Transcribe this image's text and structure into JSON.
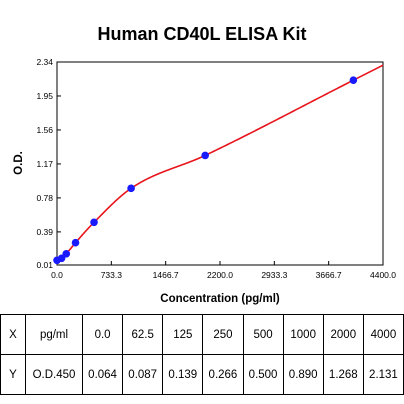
{
  "chart_data": {
    "type": "scatter",
    "title": "Human CD40L ELISA Kit",
    "xlabel": "Concentration (pg/ml)",
    "ylabel": "O.D.",
    "xlim": [
      0,
      4400
    ],
    "ylim": [
      0.01,
      2.34
    ],
    "x_ticks": [
      "0.0",
      "733.3",
      "1466.7",
      "2200.0",
      "2933.3",
      "3666.7",
      "4400.0"
    ],
    "y_ticks": [
      "0.01",
      "0.39",
      "0.78",
      "1.17",
      "1.56",
      "1.95",
      "2.34"
    ],
    "grid": false,
    "points": {
      "x": [
        0,
        62.5,
        125,
        250,
        500,
        1000,
        2000,
        4000
      ],
      "y": [
        0.064,
        0.087,
        0.139,
        0.266,
        0.5,
        0.89,
        1.268,
        2.131
      ]
    },
    "point_color": "#1a1aff",
    "curve_color": "#e8141c",
    "fit_curve": "smooth curve through standards"
  },
  "table": {
    "rows": [
      [
        "X",
        "pg/ml",
        "0.0",
        "62.5",
        "125",
        "250",
        "500",
        "1000",
        "2000",
        "4000"
      ],
      [
        "Y",
        "O.D.450",
        "0.064",
        "0.087",
        "0.139",
        "0.266",
        "0.500",
        "0.890",
        "1.268",
        "2.131"
      ]
    ]
  }
}
